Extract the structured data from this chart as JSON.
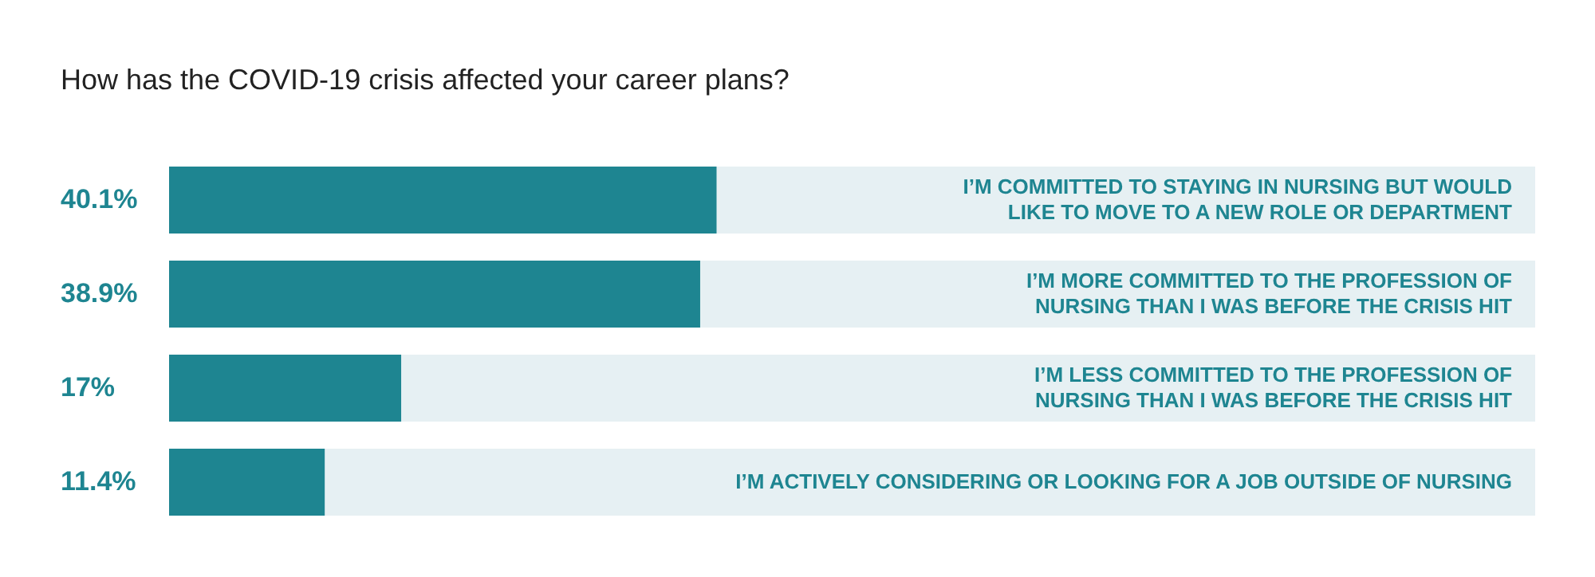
{
  "chart_data": {
    "type": "bar",
    "orientation": "horizontal",
    "title": "How has the COVID-19 crisis affected your career plans?",
    "categories": [
      "I’M COMMITTED TO STAYING IN NURSING BUT WOULD LIKE TO MOVE TO A NEW ROLE OR DEPARTMENT",
      "I’M MORE COMMITTED TO THE PROFESSION OF NURSING THAN I WAS BEFORE THE CRISIS HIT",
      "I’M LESS COMMITTED TO THE PROFESSION OF NURSING THAN I WAS BEFORE THE CRISIS HIT",
      "I’M ACTIVELY CONSIDERING OR LOOKING FOR A JOB OUTSIDE OF NURSING"
    ],
    "values": [
      40.1,
      38.9,
      17,
      11.4
    ],
    "value_labels": [
      "40.1%",
      "38.9%",
      "17%",
      "11.4%"
    ],
    "color": "#1e8591",
    "xlim": [
      0,
      100
    ]
  }
}
